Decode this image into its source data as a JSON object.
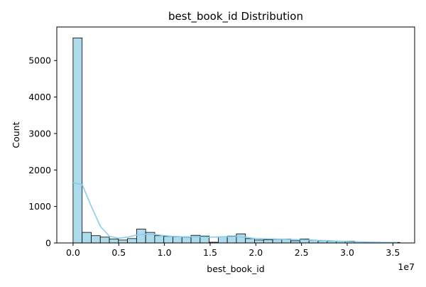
{
  "chart_data": {
    "type": "bar",
    "title": "best_book_id Distribution",
    "xlabel": "best_book_id",
    "ylabel": "Count",
    "x_offset_label": "1e7",
    "x_tick_values": [
      0.0,
      0.5,
      1.0,
      1.5,
      2.0,
      2.5,
      3.0,
      3.5
    ],
    "x_tick_labels": [
      "0.0",
      "0.5",
      "1.0",
      "1.5",
      "2.0",
      "2.5",
      "3.0",
      "3.5"
    ],
    "y_tick_values": [
      0,
      1000,
      2000,
      3000,
      4000,
      5000
    ],
    "y_tick_labels": [
      "0",
      "1000",
      "2000",
      "3000",
      "4000",
      "5000"
    ],
    "xlim": [
      -0.178,
      3.738
    ],
    "ylim": [
      0,
      5920
    ],
    "bin_edges": [
      0.0,
      0.0993,
      0.1986,
      0.2979,
      0.3972,
      0.4965,
      0.5958,
      0.6951,
      0.7944,
      0.8937,
      0.993,
      1.0923,
      1.1916,
      1.2909,
      1.3902,
      1.4895,
      1.5888,
      1.6881,
      1.7874,
      1.8867,
      1.986,
      2.0853,
      2.1846,
      2.2839,
      2.3832,
      2.4825,
      2.5818,
      2.6811,
      2.7804,
      2.8797,
      2.979,
      3.0783,
      3.1776,
      3.2769,
      3.3762,
      3.4755,
      3.5748
    ],
    "values": [
      5620,
      290,
      200,
      160,
      110,
      80,
      120,
      380,
      290,
      200,
      180,
      170,
      160,
      210,
      190,
      20,
      170,
      190,
      250,
      120,
      80,
      90,
      100,
      110,
      60,
      110,
      70,
      60,
      50,
      50,
      50,
      30,
      20,
      20,
      20,
      15
    ],
    "kde": {
      "name": "",
      "x": [
        0.0,
        0.1,
        0.2,
        0.3,
        0.4,
        0.5,
        0.6,
        0.7,
        0.8,
        0.9,
        1.0,
        1.1,
        1.2,
        1.3,
        1.4,
        1.5,
        1.6,
        1.7,
        1.8,
        1.9,
        2.0,
        2.2,
        2.4,
        2.6,
        2.8,
        3.0,
        3.2,
        3.4,
        3.55
      ],
      "y": [
        1650,
        1600,
        1000,
        450,
        180,
        130,
        160,
        220,
        240,
        230,
        200,
        180,
        170,
        170,
        170,
        160,
        165,
        175,
        175,
        150,
        120,
        110,
        95,
        80,
        60,
        40,
        25,
        15,
        10
      ]
    },
    "colors": {
      "bar_fill": "#addbeb",
      "bar_edge": "#000000",
      "kde_line": "#87ceeb",
      "axis": "#000000"
    },
    "grid": false,
    "legend": "none"
  }
}
